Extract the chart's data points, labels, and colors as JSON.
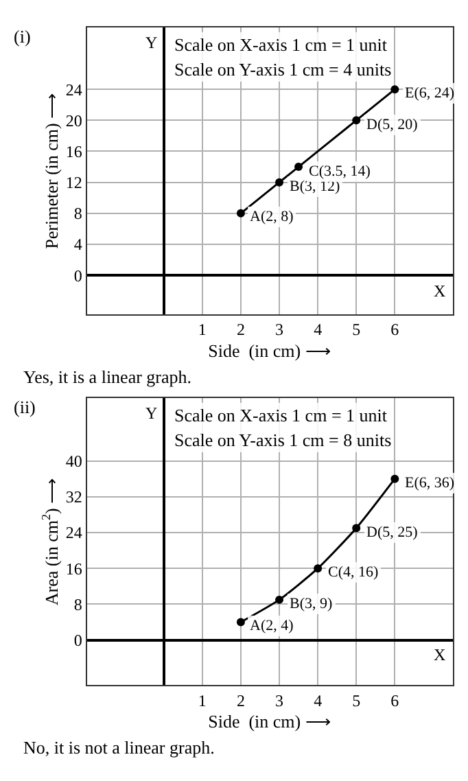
{
  "chart_data": [
    {
      "type": "line",
      "xlabel": "Side  (in cm) ⟶",
      "ylabel": "Perimeter (in cm) ⟶",
      "xlim": [
        -2,
        7.5
      ],
      "ylim": [
        -5,
        32
      ],
      "xticks": [
        1,
        2,
        3,
        4,
        5,
        6
      ],
      "yticks": [
        0,
        4,
        8,
        12,
        16,
        20,
        24
      ],
      "grid": true,
      "marker": "circle",
      "line_style": "solid",
      "x": [
        2,
        3,
        3.5,
        5,
        6
      ],
      "series": [
        {
          "color": "#000000",
          "values": [
            8,
            12,
            14,
            20,
            24
          ]
        }
      ],
      "annotations": [
        "(i)",
        "Scale on X-axis 1 cm = 1 unit",
        "Scale on Y-axis 1 cm = 4 units",
        "Yes, it is a linear graph.",
        "X",
        "Y",
        {
          "text": "A(2, 8)",
          "x": 2,
          "y": 8
        },
        {
          "text": "B(3, 12)",
          "x": 3,
          "y": 12
        },
        {
          "text": "C(3.5, 14)",
          "x": 3.5,
          "y": 14
        },
        {
          "text": "D(5, 20)",
          "x": 5,
          "y": 20
        },
        {
          "text": "E(6, 24)",
          "x": 6,
          "y": 24
        }
      ]
    },
    {
      "type": "line",
      "xlabel": "Side  (in cm) ⟶",
      "ylabel": "Area (in cm$^{2}$) ⟶",
      "xlim": [
        -2,
        7.5
      ],
      "ylim": [
        -10,
        54
      ],
      "xticks": [
        1,
        2,
        3,
        4,
        5,
        6
      ],
      "yticks": [
        0,
        8,
        16,
        24,
        32,
        40
      ],
      "grid": true,
      "marker": "circle",
      "line_style": "solid",
      "x": [
        2,
        3,
        4,
        5,
        6
      ],
      "series": [
        {
          "color": "#000000",
          "values": [
            4,
            9,
            16,
            25,
            36
          ]
        }
      ],
      "annotations": [
        "(ii)",
        "Scale on X-axis 1 cm = 1 unit",
        "Scale on Y-axis 1 cm = 8 units",
        "No, it is not a linear graph.",
        "X",
        "Y",
        {
          "text": "A(2, 4)",
          "x": 2,
          "y": 4
        },
        {
          "text": "B(3, 9)",
          "x": 3,
          "y": 9
        },
        {
          "text": "C(4, 16)",
          "x": 4,
          "y": 16
        },
        {
          "text": "D(5, 25)",
          "x": 5,
          "y": 25
        },
        {
          "text": "E(6, 36)",
          "x": 6,
          "y": 36
        }
      ]
    }
  ]
}
